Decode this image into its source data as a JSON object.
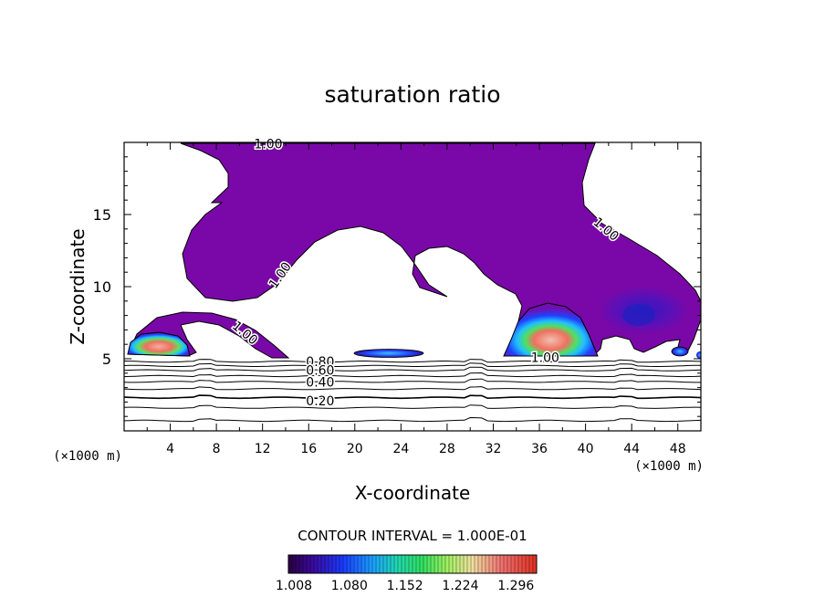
{
  "chart_data": {
    "type": "contour",
    "title": "saturation ratio",
    "xlabel": "X-coordinate",
    "ylabel": "Z-coordinate",
    "x_unit_label": "(×1000 m)",
    "y_unit_label": "(×1000 m)",
    "xlim": [
      0,
      50
    ],
    "ylim": [
      0,
      20
    ],
    "x_ticks": [
      4,
      8,
      12,
      16,
      20,
      24,
      28,
      32,
      36,
      40,
      44,
      48
    ],
    "y_ticks": [
      5,
      10,
      15
    ],
    "x_tick_labels": [
      "4",
      "8",
      "12",
      "16",
      "20",
      "24",
      "28",
      "32",
      "36",
      "40",
      "44",
      "48"
    ],
    "y_tick_labels": [
      "5",
      "10",
      "15"
    ],
    "contour_interval_text": "CONTOUR INTERVAL = 1.000E-01",
    "colorbar": {
      "min": 1.008,
      "max": 1.33,
      "tick_values": [
        1.008,
        1.08,
        1.152,
        1.224,
        1.296
      ],
      "tick_labels": [
        "1.008",
        "1.080",
        "1.152",
        "1.224",
        "1.296"
      ]
    },
    "contour_labels": [
      {
        "text": "1.00",
        "x": 12.5,
        "z": 19.9,
        "angle": 0
      },
      {
        "text": "1.00",
        "x": 41.8,
        "z": 14.0,
        "angle": 40
      },
      {
        "text": "1.00",
        "x": 13.5,
        "z": 10.8,
        "angle": -55
      },
      {
        "text": "1.00",
        "x": 10.5,
        "z": 6.8,
        "angle": 40
      },
      {
        "text": "1.00",
        "x": 36.5,
        "z": 5.1,
        "angle": 0
      },
      {
        "text": "0.80",
        "x": 17.0,
        "z": 4.8,
        "angle": 0
      },
      {
        "text": "0.60",
        "x": 17.0,
        "z": 4.2,
        "angle": 0
      },
      {
        "text": "0.40",
        "x": 17.0,
        "z": 3.4,
        "angle": 0
      },
      {
        "text": "0.20",
        "x": 17.0,
        "z": 2.1,
        "angle": 0
      }
    ],
    "line_levels_z": [
      0.7,
      1.6,
      2.3,
      2.9,
      3.4,
      3.8,
      4.2,
      4.5,
      4.8
    ]
  }
}
